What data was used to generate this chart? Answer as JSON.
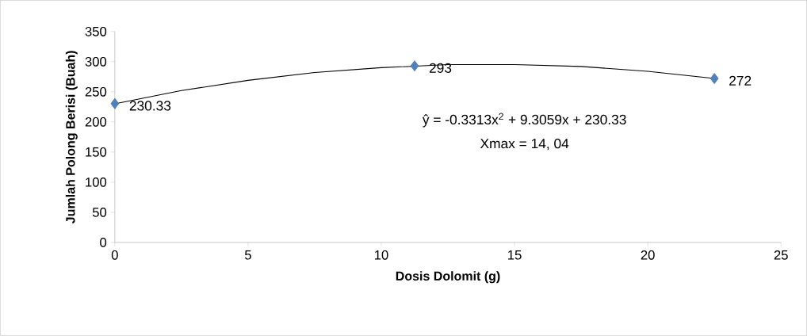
{
  "chart_data": {
    "type": "scatter",
    "xlabel": "Dosis Dolomit (g)",
    "ylabel": "Jumlah Polong Berisi (Buah)",
    "x": [
      0,
      11.25,
      22.5
    ],
    "series": [
      {
        "color": "#4f81bd",
        "marker": "diamond",
        "data_labels": true,
        "values": [
          230.33,
          293,
          272
        ]
      },
      {
        "type": "line",
        "color": "#000000",
        "marker": "none",
        "line_style": "solid",
        "x": [
          0,
          2.5,
          5,
          7.5,
          10,
          12.5,
          15,
          17.5,
          20,
          22.5
        ],
        "values": [
          230,
          252,
          269,
          282,
          290,
          295,
          295,
          292,
          284,
          272
        ]
      }
    ],
    "annotations": [
      "ŷ = -0.3313x$^{2}$ + 9.3059x + 230.33",
      "Xmax = 14, 04"
    ],
    "xlim": [
      0,
      25
    ],
    "xticks": [
      0,
      5,
      10,
      15,
      20,
      25
    ],
    "ylim": [
      0,
      350
    ],
    "yticks": [
      0,
      50,
      100,
      150,
      200,
      250,
      300,
      350
    ]
  }
}
